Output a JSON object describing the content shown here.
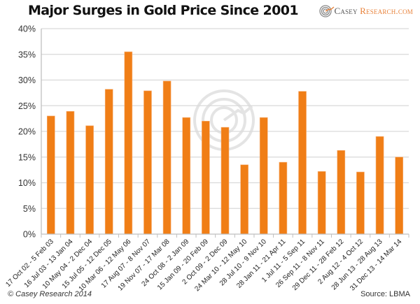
{
  "header": {
    "title": "Major Surges in Gold Price Since 2001",
    "brand_casey": "Casey",
    "brand_research": "Research.com",
    "brand_logo_icon": "casey-spiral-logo"
  },
  "footer": {
    "copyright": "© Casey Research 2014",
    "source": "Source: LBMA"
  },
  "colors": {
    "bar": "#f07e16",
    "bar_edge": "#f7b27a",
    "grid": "#d9d9d9",
    "brand_accent": "#e8823a"
  },
  "chart_data": {
    "type": "bar",
    "title": "Major Surges in Gold Price Since 2001",
    "xlabel": "",
    "ylabel": "",
    "ylim": [
      0,
      40
    ],
    "y_unit": "%",
    "yticks": [
      0,
      5,
      10,
      15,
      20,
      25,
      30,
      35,
      40
    ],
    "ytick_labels": [
      "0%",
      "5%",
      "10%",
      "15%",
      "20%",
      "25%",
      "30%",
      "35%",
      "40%"
    ],
    "grid": true,
    "legend": "none",
    "categories": [
      "17 Oct 02 - 5 Feb 03",
      "16 Jul 03 - 13 Jan 04",
      "10 May 04 - 2 Dec 04",
      "15 Jul 05 - 12 Dec 05",
      "10 Mar 06 - 12 May 06",
      "17 Aug 07 - 8 Nov 07",
      "19 Nov 07 - 17 Mar 08",
      "24 Oct 08 - 2 Jan 09",
      "15 Jan 09 - 20 Feb 09",
      "2 Oct 09 - 2 Dec 09",
      "24 Mar 10 - 12 May 10",
      "28 Jul 10 - 9 Nov 10",
      "28 Jan 11 - 21 Apr 11",
      "1 Jul 11 - 5 Sep 11",
      "26 Sep 11 - 8 Nov 11",
      "29 Dec 11 - 28 Feb 12",
      "2 Aug 12 - 4 Oct 12",
      "28 Jun 13 - 28 Aug 13",
      "31 Dec 13 - 14 Mar 14"
    ],
    "values": [
      23.0,
      23.9,
      21.1,
      28.2,
      35.5,
      27.9,
      29.8,
      22.7,
      22.0,
      20.8,
      13.5,
      22.7,
      14.0,
      27.8,
      12.2,
      16.3,
      12.1,
      19.0,
      15.0
    ],
    "annotations": [
      "© Casey Research 2014",
      "Source: LBMA"
    ]
  }
}
